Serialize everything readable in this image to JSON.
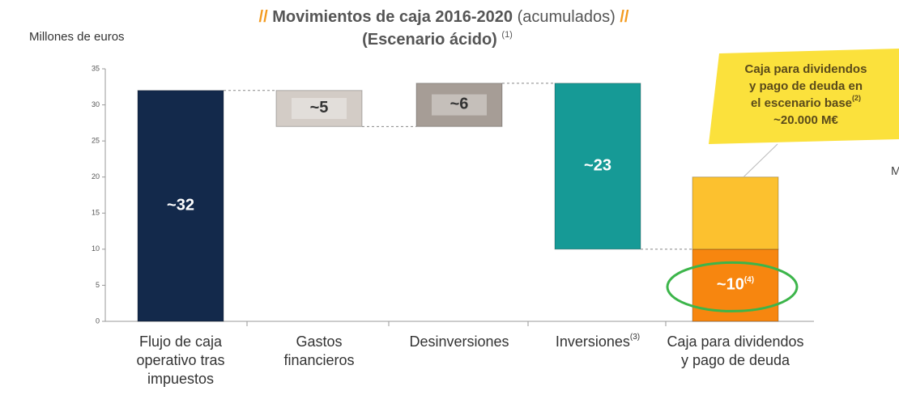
{
  "chart_data": {
    "type": "waterfall",
    "title": {
      "slash_left": "//",
      "bold": "Movimientos de caja 2016-2020",
      "normal": "(acumulados)",
      "slash_right": "//"
    },
    "subtitle": {
      "text": "(Escenario ácido)",
      "note": "(1)"
    },
    "y_label": "Millones de euros",
    "categories": [
      [
        "Flujo de caja",
        "operativo tras",
        "impuestos"
      ],
      [
        "Gastos",
        "financieros"
      ],
      [
        "Desinversiones"
      ],
      [
        "Inversiones"
      ],
      [
        "Caja para dividendos",
        "y  pago de deuda"
      ]
    ],
    "category_notes": [
      null,
      null,
      null,
      "(3)",
      null
    ],
    "values": [
      32,
      -5,
      6,
      -23,
      10
    ],
    "value_labels": [
      "~32",
      "~5",
      "~6",
      "~23",
      "~10"
    ],
    "value_label_notes": [
      null,
      null,
      null,
      null,
      "(4)"
    ],
    "colors": [
      "#13294b",
      "#d3ccc6",
      "#a69d96",
      "#169a96",
      "#f7860f"
    ],
    "label_colors": [
      "#ffffff",
      "#333333",
      "#333333",
      "#ffffff",
      "#ffffff"
    ],
    "base_scenario": {
      "value": 10,
      "color": "#fcc12f",
      "callout_color": "#fbe13c",
      "callout": [
        "Caja para dividendos",
        "y pago de deuda en",
        "el escenario base",
        "~20.000 M€"
      ],
      "callout_note": "(2)"
    },
    "edge_text": "M",
    "ylim": [
      0,
      35
    ],
    "yticks": [
      0,
      5,
      10,
      15,
      20,
      25,
      30,
      35
    ]
  }
}
